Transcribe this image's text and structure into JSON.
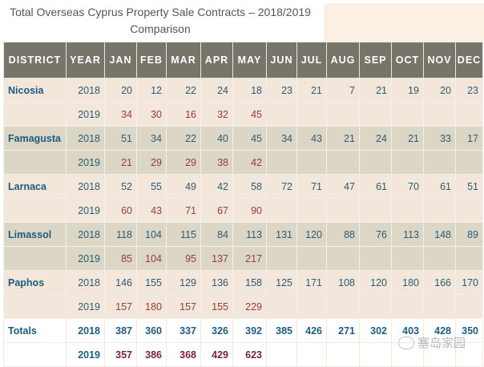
{
  "title_line1": "Total Overseas Cyprus Property Sale Contracts – 2018/2019",
  "title_line2": "Comparison",
  "headers": [
    "DISTRICT",
    "YEAR",
    "JAN",
    "FEB",
    "MAR",
    "APR",
    "MAY",
    "JUN",
    "JUL",
    "AUG",
    "SEP",
    "OCT",
    "NOV",
    "DEC"
  ],
  "rows": [
    {
      "district": "Nicosia",
      "year": "2018",
      "values": [
        "20",
        "12",
        "22",
        "24",
        "18",
        "23",
        "21",
        "7",
        "21",
        "19",
        "20",
        "23"
      ]
    },
    {
      "district": "",
      "year": "2019",
      "values": [
        "34",
        "30",
        "16",
        "32",
        "45",
        "",
        "",
        "",
        "",
        "",
        "",
        ""
      ]
    },
    {
      "district": "Famagusta",
      "year": "2018",
      "values": [
        "51",
        "34",
        "22",
        "40",
        "45",
        "34",
        "43",
        "21",
        "24",
        "21",
        "33",
        "17"
      ]
    },
    {
      "district": "",
      "year": "2019",
      "values": [
        "21",
        "29",
        "29",
        "38",
        "42",
        "",
        "",
        "",
        "",
        "",
        "",
        ""
      ]
    },
    {
      "district": "Larnaca",
      "year": "2018",
      "values": [
        "52",
        "55",
        "49",
        "42",
        "58",
        "72",
        "71",
        "47",
        "61",
        "70",
        "61",
        "51"
      ]
    },
    {
      "district": "",
      "year": "2019",
      "values": [
        "60",
        "43",
        "71",
        "67",
        "90",
        "",
        "",
        "",
        "",
        "",
        "",
        ""
      ]
    },
    {
      "district": "Limassol",
      "year": "2018",
      "values": [
        "118",
        "104",
        "115",
        "84",
        "113",
        "131",
        "120",
        "88",
        "76",
        "113",
        "148",
        "89"
      ]
    },
    {
      "district": "",
      "year": "2019",
      "values": [
        "85",
        "104",
        "95",
        "137",
        "217",
        "",
        "",
        "",
        "",
        "",
        "",
        ""
      ]
    },
    {
      "district": "Paphos",
      "year": "2018",
      "values": [
        "146",
        "155",
        "129",
        "136",
        "158",
        "125",
        "171",
        "108",
        "120",
        "180",
        "166",
        "170"
      ]
    },
    {
      "district": "",
      "year": "2019",
      "values": [
        "157",
        "180",
        "157",
        "155",
        "229",
        "",
        "",
        "",
        "",
        "",
        "",
        ""
      ]
    },
    {
      "district": "Totals",
      "year": "2018",
      "values": [
        "387",
        "360",
        "337",
        "326",
        "392",
        "385",
        "426",
        "271",
        "302",
        "403",
        "428",
        "350"
      ]
    },
    {
      "district": "",
      "year": "2019",
      "values": [
        "357",
        "386",
        "368",
        "429",
        "623",
        "",
        "",
        "",
        "",
        "",
        "",
        ""
      ]
    }
  ],
  "watermark": "塞岛家园"
}
